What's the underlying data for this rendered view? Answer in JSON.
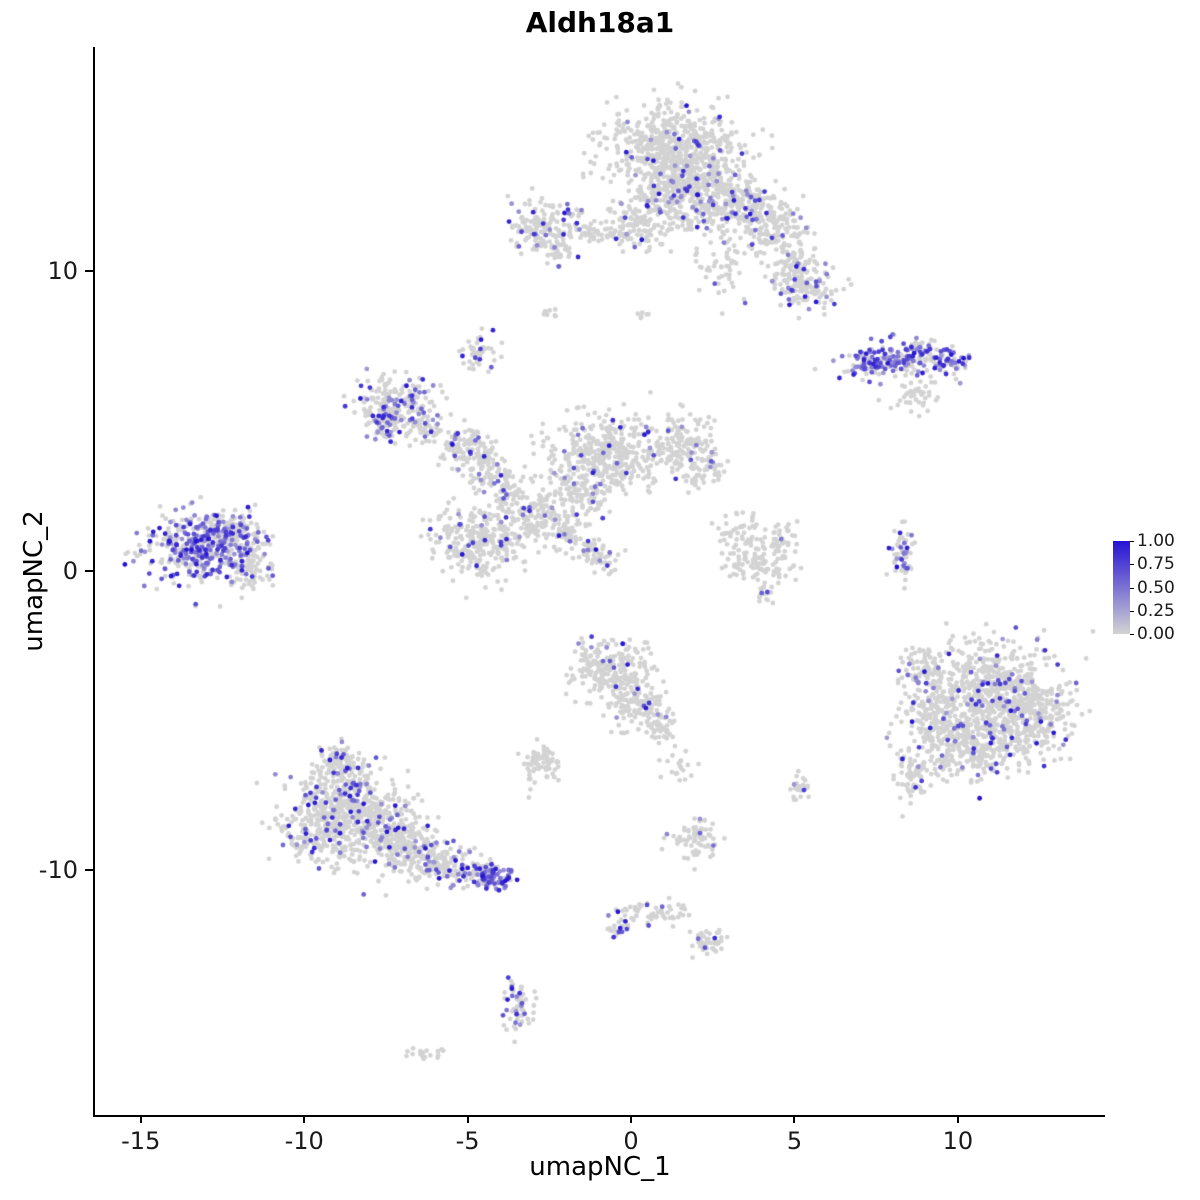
{
  "chart_data": {
    "type": "scatter",
    "title": "Aldh18a1",
    "xlabel": "umapNC_1",
    "ylabel": "umapNC_2",
    "x_domain": [
      -16.4,
      14.5
    ],
    "y_domain": [
      -18.2,
      17.5
    ],
    "x_ticks": [
      -15,
      -10,
      -5,
      0,
      5,
      10
    ],
    "y_ticks": [
      -10,
      0,
      10
    ],
    "grid": false,
    "point_radius": 2.4,
    "colors": {
      "low": "#d3d3d3",
      "high": "#2512d3"
    },
    "legend": {
      "position": "right",
      "ticks": [
        "1.00",
        "0.75",
        "0.50",
        "0.25",
        "0.00"
      ]
    },
    "clusters_fields": [
      "id",
      "center_x",
      "center_y",
      "sd_x",
      "sd_y",
      "n_cells",
      "expressed_fraction"
    ],
    "clusters": [
      [
        "top-main-1",
        1.2,
        14.2,
        1.0,
        0.7,
        500,
        0.06
      ],
      [
        "top-main-2",
        1.8,
        12.8,
        0.9,
        0.7,
        450,
        0.1
      ],
      [
        "top-main-3",
        3.2,
        12.2,
        0.6,
        0.5,
        180,
        0.12
      ],
      [
        "top-arm-1",
        4.3,
        11.4,
        0.5,
        0.5,
        140,
        0.1
      ],
      [
        "top-arm-2",
        4.9,
        10.3,
        0.35,
        0.45,
        90,
        0.08
      ],
      [
        "top-arm-3",
        5.4,
        9.4,
        0.45,
        0.35,
        110,
        0.15
      ],
      [
        "top-left-lobe",
        0.2,
        11.6,
        0.5,
        0.4,
        120,
        0.05
      ],
      [
        "top-streak",
        -0.9,
        11.3,
        0.7,
        0.15,
        60,
        0.03
      ],
      [
        "top-sparse",
        2.9,
        10.1,
        0.4,
        0.5,
        50,
        0.05
      ],
      [
        "upper-small",
        -2.7,
        11.5,
        0.5,
        0.45,
        150,
        0.12
      ],
      [
        "upper-small-tail",
        -2.2,
        10.7,
        0.25,
        0.2,
        30,
        0.05
      ],
      [
        "right-streak-1",
        7.3,
        7.0,
        0.5,
        0.25,
        90,
        0.55
      ],
      [
        "right-streak-2",
        8.6,
        7.2,
        0.7,
        0.3,
        130,
        0.5
      ],
      [
        "right-streak-3",
        9.8,
        7.0,
        0.3,
        0.25,
        45,
        0.6
      ],
      [
        "right-streak-tail",
        8.8,
        5.9,
        0.35,
        0.3,
        45,
        0.0
      ],
      [
        "tiny-mid-upper",
        -4.7,
        7.3,
        0.25,
        0.3,
        45,
        0.3
      ],
      [
        "midleft-1",
        -7.2,
        5.6,
        0.55,
        0.45,
        200,
        0.25
      ],
      [
        "midleft-2",
        -7.6,
        4.9,
        0.3,
        0.25,
        60,
        0.3
      ],
      [
        "net-conn",
        -6.2,
        4.7,
        0.3,
        0.25,
        40,
        0.1
      ],
      [
        "net-node-1",
        -5.2,
        4.2,
        0.4,
        0.35,
        90,
        0.1
      ],
      [
        "net-node-2",
        -4.4,
        3.4,
        0.35,
        0.4,
        80,
        0.15
      ],
      [
        "net-node-3",
        -3.7,
        2.6,
        0.3,
        0.35,
        60,
        0.1
      ],
      [
        "central-blob",
        -0.8,
        3.9,
        0.9,
        0.6,
        380,
        0.04
      ],
      [
        "central-right",
        1.5,
        4.2,
        0.6,
        0.5,
        160,
        0.06
      ],
      [
        "central-right-2",
        2.2,
        3.3,
        0.3,
        0.3,
        50,
        0.1
      ],
      [
        "central-band",
        -1.6,
        2.6,
        0.5,
        0.4,
        120,
        0.05
      ],
      [
        "central-band-2",
        -2.8,
        1.8,
        0.5,
        0.4,
        110,
        0.08
      ],
      [
        "mid-low-blob",
        -4.6,
        1.0,
        0.7,
        0.6,
        300,
        0.08
      ],
      [
        "diag-streak-1",
        -2.0,
        1.3,
        0.25,
        0.2,
        40,
        0.1
      ],
      [
        "diag-streak-2",
        -1.4,
        0.8,
        0.25,
        0.2,
        40,
        0.1
      ],
      [
        "diag-streak-3",
        -0.8,
        0.3,
        0.25,
        0.2,
        30,
        0.1
      ],
      [
        "c-shape-1",
        3.3,
        1.0,
        0.35,
        0.5,
        70,
        0.02
      ],
      [
        "c-shape-2",
        4.0,
        0.2,
        0.5,
        0.3,
        70,
        0.02
      ],
      [
        "c-shape-3",
        4.6,
        1.0,
        0.25,
        0.4,
        40,
        0.05
      ],
      [
        "c-shape-dot",
        4.1,
        -0.8,
        0.15,
        0.15,
        15,
        0.15
      ],
      [
        "left-dense-1",
        -13.3,
        0.7,
        0.8,
        0.6,
        380,
        0.45
      ],
      [
        "left-dense-2",
        -12.2,
        1.3,
        0.5,
        0.4,
        120,
        0.3
      ],
      [
        "left-dense-3",
        -11.8,
        0.1,
        0.4,
        0.4,
        80,
        0.25
      ],
      [
        "right-vert-streak",
        8.3,
        0.6,
        0.18,
        0.5,
        60,
        0.3
      ],
      [
        "right-big-1",
        11.2,
        -4.0,
        1.0,
        0.8,
        550,
        0.08
      ],
      [
        "right-big-2",
        10.3,
        -5.8,
        0.9,
        0.6,
        350,
        0.08
      ],
      [
        "right-big-3",
        12.3,
        -5.0,
        0.6,
        0.6,
        200,
        0.1
      ],
      [
        "right-big-4",
        9.2,
        -4.6,
        0.5,
        0.6,
        150,
        0.06
      ],
      [
        "right-big-tail",
        8.6,
        -6.9,
        0.3,
        0.4,
        60,
        0.1
      ],
      [
        "right-big-top",
        9.0,
        -3.2,
        0.35,
        0.35,
        70,
        0.1
      ],
      [
        "center-low-1",
        -0.6,
        -3.3,
        0.6,
        0.5,
        220,
        0.06
      ],
      [
        "center-low-2",
        0.2,
        -4.5,
        0.45,
        0.45,
        120,
        0.06
      ],
      [
        "center-low-arm",
        0.9,
        -5.2,
        0.25,
        0.3,
        40,
        0.03
      ],
      [
        "center-low-sparse",
        1.6,
        -6.6,
        0.3,
        0.3,
        20,
        0.0
      ],
      [
        "small-gray-mid",
        -2.75,
        -6.4,
        0.3,
        0.35,
        70,
        0.02
      ],
      [
        "botleft-1",
        -8.8,
        -7.4,
        0.8,
        0.6,
        300,
        0.12
      ],
      [
        "botleft-2",
        -9.3,
        -8.7,
        0.7,
        0.6,
        250,
        0.12
      ],
      [
        "botleft-3",
        -7.7,
        -8.6,
        0.7,
        0.6,
        280,
        0.12
      ],
      [
        "botleft-arm-1",
        -6.6,
        -9.4,
        0.5,
        0.4,
        150,
        0.12
      ],
      [
        "botleft-arm-2",
        -5.6,
        -9.9,
        0.4,
        0.3,
        90,
        0.15
      ],
      [
        "botleft-arm-3",
        -4.7,
        -10.1,
        0.35,
        0.25,
        70,
        0.3
      ],
      [
        "botleft-tip-dense",
        -4.1,
        -10.35,
        0.3,
        0.2,
        70,
        0.75
      ],
      [
        "botleft-top-spur",
        -8.9,
        -6.3,
        0.3,
        0.3,
        60,
        0.15
      ],
      [
        "bottom-sparse-1",
        2.0,
        -8.9,
        0.35,
        0.35,
        70,
        0.04
      ],
      [
        "bottom-streak",
        0.8,
        -11.4,
        0.5,
        0.2,
        50,
        0.02
      ],
      [
        "bottom-purple-dot",
        -0.3,
        -11.9,
        0.2,
        0.2,
        25,
        0.3
      ],
      [
        "bottom-sparse-2",
        2.4,
        -12.4,
        0.3,
        0.2,
        45,
        0.05
      ],
      [
        "tiny-right-low",
        5.2,
        -7.2,
        0.15,
        0.25,
        25,
        0.05
      ],
      [
        "bottom-small",
        -3.5,
        -14.7,
        0.25,
        0.45,
        60,
        0.3
      ],
      [
        "bottom-speck",
        -6.3,
        -16.2,
        0.3,
        0.12,
        18,
        0.0
      ],
      [
        "speck-upper-1",
        -2.5,
        8.6,
        0.12,
        0.12,
        8,
        0.0
      ],
      [
        "speck-upper-2",
        0.3,
        8.5,
        0.15,
        0.15,
        6,
        0.0
      ]
    ]
  }
}
